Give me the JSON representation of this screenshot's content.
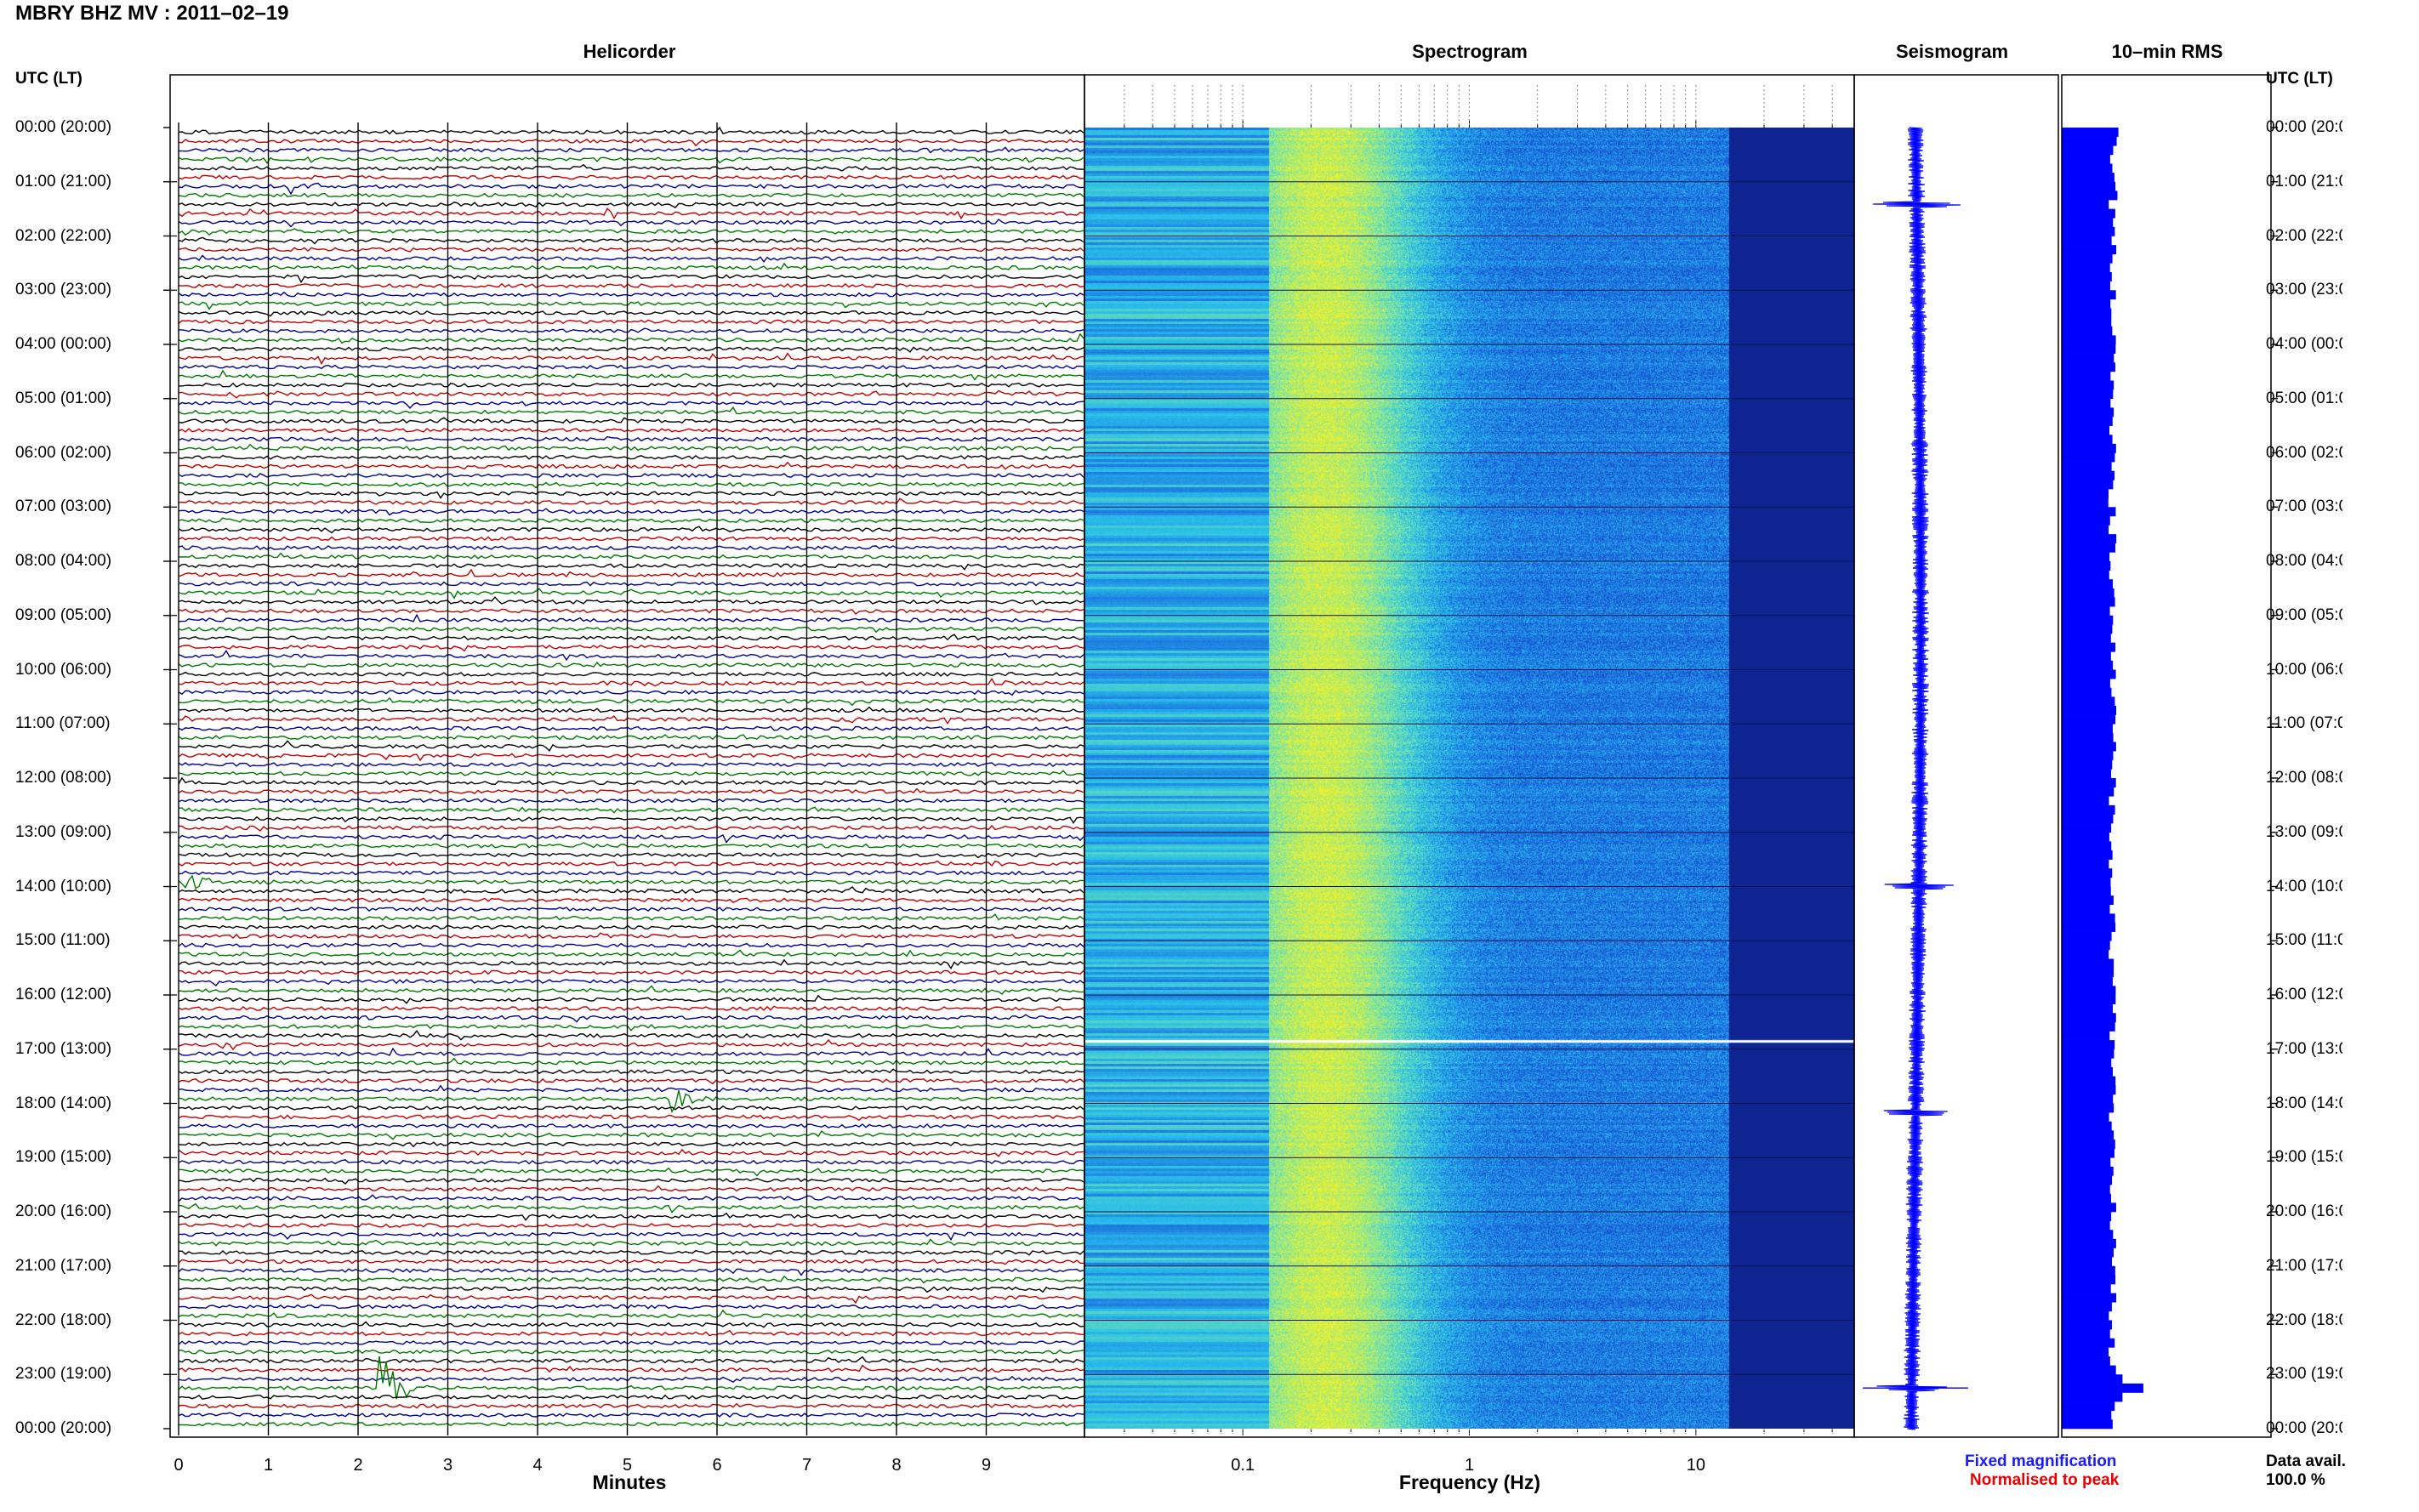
{
  "header": {
    "title": "MBRY BHZ MV : 2011–02–19"
  },
  "panels": {
    "helicorder": "Helicorder",
    "spectrogram": "Spectrogram",
    "seismogram": "Seismogram",
    "rms": "10–min RMS"
  },
  "axes": {
    "utc_left": "UTC (LT)",
    "utc_right": "UTC (LT)",
    "minutes_label": "Minutes",
    "frequency_label": "Frequency (Hz)"
  },
  "legend": {
    "fixed": "Fixed magnification",
    "normalised": "Normalised to peak",
    "avail_label": "Data avail.",
    "avail_value": "100.0 %"
  },
  "colors": {
    "trace_cycle": [
      "#000000",
      "#c00000",
      "#00008b",
      "#007a00"
    ],
    "seismogram": "#0000ff",
    "rms": "#0000ff",
    "spec_dark": "#0a1e8c",
    "spec_mid": "#1e6ee6",
    "spec_cyan": "#28c8e6",
    "spec_yellow": "#f0f028"
  },
  "chart_data": [
    {
      "type": "line",
      "name": "helicorder",
      "title": "Helicorder",
      "xlabel": "Minutes",
      "ylabel": "UTC (LT)",
      "x_ticks": [
        "0",
        "1",
        "2",
        "3",
        "4",
        "5",
        "6",
        "7",
        "8",
        "9"
      ],
      "xlim": [
        0,
        10
      ],
      "rows": 144,
      "row_minutes": 10,
      "time_labels": [
        "00:00 (20:00)",
        "01:00 (21:00)",
        "02:00 (22:00)",
        "03:00 (23:00)",
        "04:00 (00:00)",
        "05:00 (01:00)",
        "06:00 (02:00)",
        "07:00 (03:00)",
        "08:00 (04:00)",
        "09:00 (05:00)",
        "10:00 (06:00)",
        "11:00 (07:00)",
        "12:00 (08:00)",
        "13:00 (09:00)",
        "14:00 (10:00)",
        "15:00 (11:00)",
        "16:00 (12:00)",
        "17:00 (13:00)",
        "18:00 (14:00)",
        "19:00 (15:00)",
        "20:00 (16:00)",
        "21:00 (17:00)",
        "22:00 (18:00)",
        "23:00 (19:00)",
        "00:00 (20:00)"
      ],
      "events": [
        {
          "row": 139,
          "minute": 2.2,
          "amplitude": 3.0
        },
        {
          "row": 107,
          "minute": 5.4,
          "amplitude": 1.2
        },
        {
          "row": 6,
          "minute": 1.2,
          "amplitude": 0.8
        },
        {
          "row": 83,
          "minute": 0.1,
          "amplitude": 0.8
        }
      ]
    },
    {
      "type": "heatmap",
      "name": "spectrogram",
      "title": "Spectrogram",
      "xlabel": "Frequency (Hz)",
      "x_scale": "log",
      "xlim": [
        0.02,
        50
      ],
      "x_ticks": [
        "0.1",
        "1",
        "10"
      ],
      "gap_time_utc": "16:50"
    },
    {
      "type": "line",
      "name": "seismogram",
      "title": "Seismogram",
      "spikes_utc": [
        "01:25",
        "14:00",
        "18:10",
        "23:15"
      ]
    },
    {
      "type": "bar",
      "name": "rms",
      "title": "10–min RMS",
      "interval_minutes": 10,
      "baseline_level": 0.62,
      "peak_utc": "23:10",
      "peak_level": 1.0
    }
  ]
}
